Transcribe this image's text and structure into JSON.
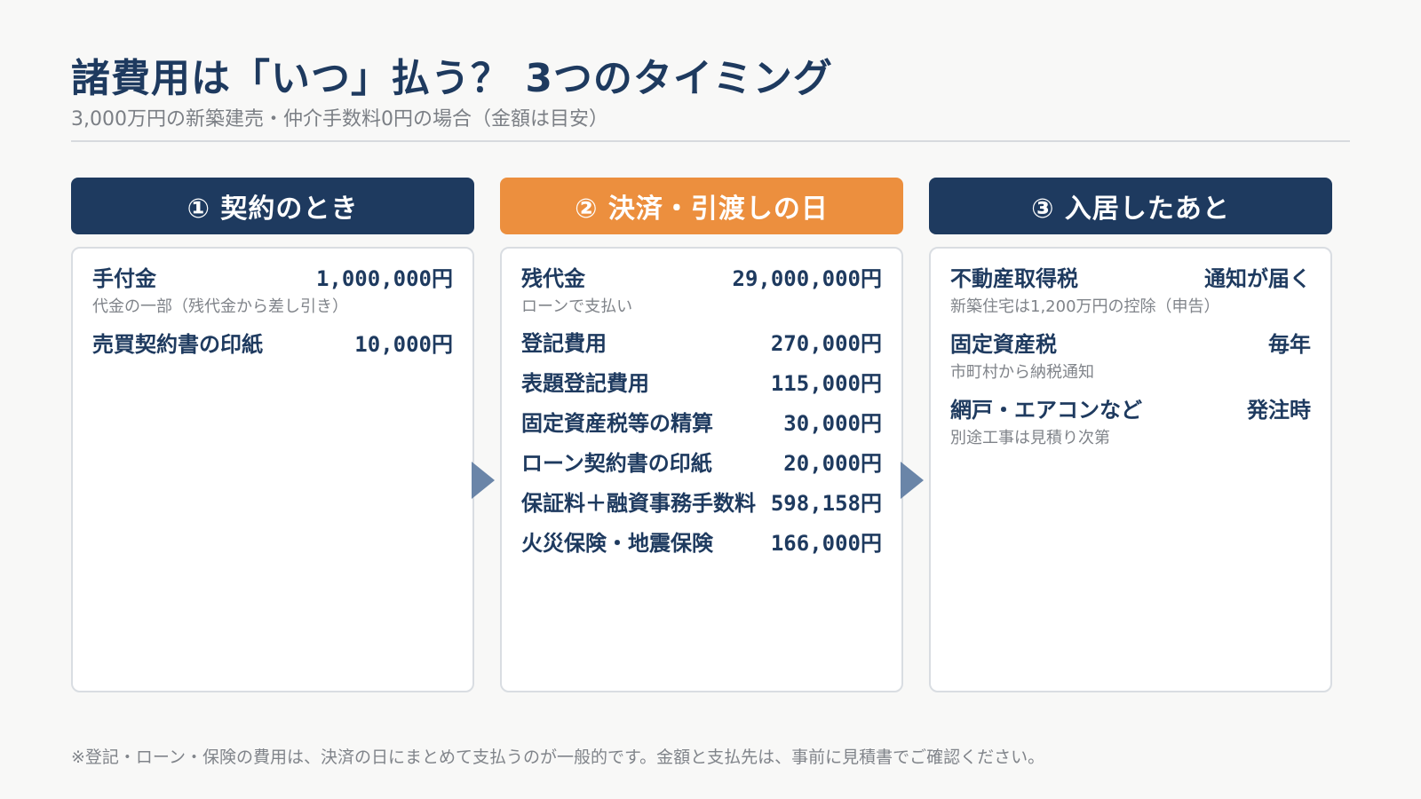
{
  "header": {
    "title": "諸費用は「いつ」払う？ 3つのタイミング",
    "subtitle": "3,000万円の新築建売・仲介手数料0円の場合（金額は目安）"
  },
  "columns": [
    {
      "heading": "① 契約のとき",
      "header_color": "#1e3a5f",
      "items": [
        {
          "label": "手付金",
          "amount": "1,000,000円",
          "note": "代金の一部（残代金から差し引き）"
        },
        {
          "label": "売買契約書の印紙",
          "amount": "10,000円"
        }
      ]
    },
    {
      "heading": "② 決済・引渡しの日",
      "header_color": "#ec8f3e",
      "items": [
        {
          "label": "残代金",
          "amount": "29,000,000円",
          "note": "ローンで支払い"
        },
        {
          "label": "登記費用",
          "amount": "270,000円"
        },
        {
          "label": "表題登記費用",
          "amount": "115,000円"
        },
        {
          "label": "固定資産税等の精算",
          "amount": "30,000円"
        },
        {
          "label": "ローン契約書の印紙",
          "amount": "20,000円"
        },
        {
          "label": "保証料＋融資事務手数料",
          "amount": "598,158円"
        },
        {
          "label": "火災保険・地震保険",
          "amount": "166,000円"
        }
      ]
    },
    {
      "heading": "③ 入居したあと",
      "header_color": "#1e3a5f",
      "items": [
        {
          "label": "不動産取得税",
          "amount": "通知が届く",
          "note": "新築住宅は1,200万円の控除（申告）"
        },
        {
          "label": "固定資産税",
          "amount": "毎年",
          "note": "市町村から納税通知"
        },
        {
          "label": "網戸・エアコンなど",
          "amount": "発注時",
          "note": "別途工事は見積り次第"
        }
      ]
    }
  ],
  "footnote": "※登記・ローン・保険の費用は、決済の日にまとめて支払うのが一般的です。金額と支払先は、事前に見積書でご確認ください。"
}
